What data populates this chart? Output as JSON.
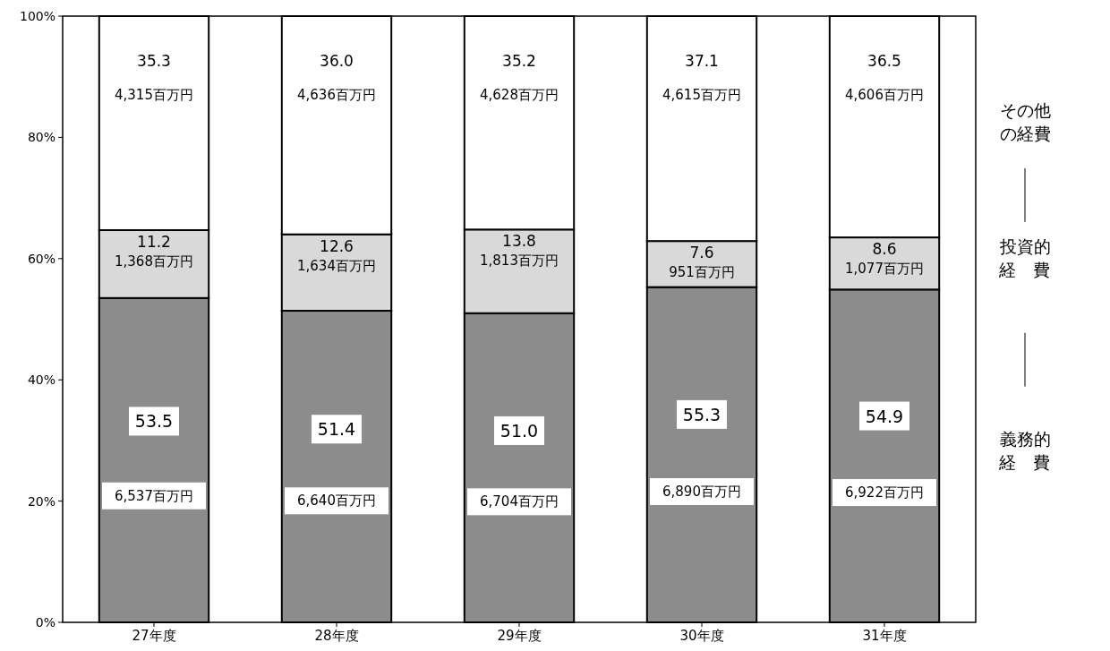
{
  "chart_data": {
    "type": "bar",
    "stacked": true,
    "categories": [
      "27年度",
      "28年度",
      "29年度",
      "30年度",
      "31年度"
    ],
    "series": [
      {
        "name": "義務的経費",
        "color": "#8c8c8c",
        "values": [
          53.5,
          51.4,
          51.0,
          55.3,
          54.9
        ],
        "value_labels": [
          "53.5",
          "51.4",
          "51.0",
          "55.3",
          "54.9"
        ]
      },
      {
        "name": "投資的経費",
        "color": "#d9d9d9",
        "values": [
          11.2,
          12.6,
          13.8,
          7.6,
          8.6
        ],
        "value_labels": [
          "11.2",
          "12.6",
          "13.8",
          "7.6",
          "8.6"
        ]
      },
      {
        "name": "その他の経費",
        "color": "#ffffff",
        "values": [
          35.3,
          36.0,
          35.2,
          37.1,
          36.5
        ],
        "value_labels": [
          "35.3",
          "36.0",
          "35.2",
          "37.1",
          "36.5"
        ]
      }
    ],
    "ylim": [
      0,
      100
    ],
    "yticks": [
      {
        "value": 0,
        "label": "0%"
      },
      {
        "value": 20,
        "label": "20%"
      },
      {
        "value": 40,
        "label": "40%"
      },
      {
        "value": 60,
        "label": "60%"
      },
      {
        "value": 80,
        "label": "80%"
      },
      {
        "value": 100,
        "label": "100%"
      }
    ],
    "legend": "right",
    "annotations": [
      "6,537百万円",
      "6,640百万円",
      "6,704百万円",
      "6,890百万円",
      "6,922百万円",
      "1,368百万円",
      "1,634百万円",
      "1,813百万円",
      "951百万円",
      "1,077百万円",
      "4,315百万円",
      "4,636百万円",
      "4,628百万円",
      "4,615百万円",
      "4,606百万円"
    ]
  }
}
